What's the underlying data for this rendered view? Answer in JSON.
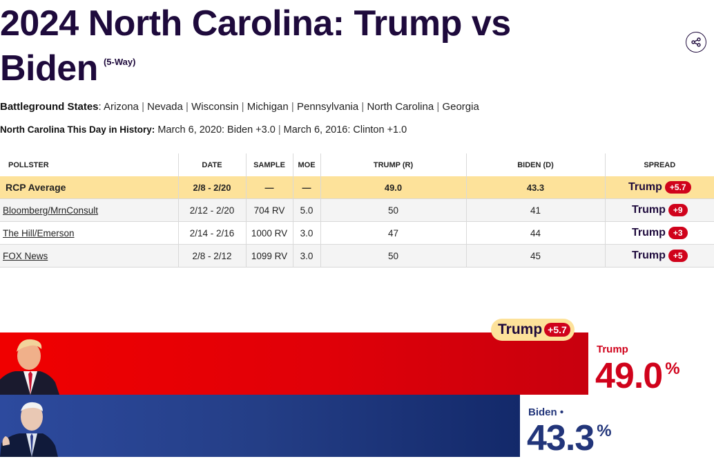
{
  "header": {
    "title": "2024 North Carolina: Trump vs Biden",
    "subtitle": "(5-Way)",
    "share_icon": "share-icon"
  },
  "battleground": {
    "label": "Battleground States",
    "states": [
      "Arizona",
      "Nevada",
      "Wisconsin",
      "Michigan",
      "Pennsylvania",
      "North Carolina",
      "Georgia"
    ]
  },
  "history": {
    "label": "North Carolina This Day in History:",
    "entries": [
      "March 6, 2020: Biden +3.0",
      "March 6, 2016: Clinton +1.0"
    ]
  },
  "table": {
    "headers": [
      "POLLSTER",
      "DATE",
      "SAMPLE",
      "MOE",
      "TRUMP (R)",
      "BIDEN (D)",
      "SPREAD"
    ],
    "average": {
      "pollster": "RCP Average",
      "date": "2/8 - 2/20",
      "sample": "—",
      "moe": "—",
      "trump": "49.0",
      "biden": "43.3",
      "spread_name": "Trump",
      "spread_value": "+5.7"
    },
    "rows": [
      {
        "pollster": "Bloomberg/MrnConsult",
        "date": "2/12 - 2/20",
        "sample": "704 RV",
        "moe": "5.0",
        "trump": "50",
        "biden": "41",
        "spread_name": "Trump",
        "spread_value": "+9"
      },
      {
        "pollster": "The Hill/Emerson",
        "date": "2/14 - 2/16",
        "sample": "1000 RV",
        "moe": "3.0",
        "trump": "47",
        "biden": "44",
        "spread_name": "Trump",
        "spread_value": "+3"
      },
      {
        "pollster": "FOX News",
        "date": "2/8 - 2/12",
        "sample": "1099 RV",
        "moe": "3.0",
        "trump": "50",
        "biden": "45",
        "spread_name": "Trump",
        "spread_value": "+5"
      }
    ]
  },
  "bars": {
    "leader": {
      "name": "Trump",
      "margin": "+5.7"
    },
    "trump": {
      "name": "Trump",
      "value": "49.0",
      "unit": "%",
      "color": "#e00008",
      "share": 0.49
    },
    "biden": {
      "name": "Biden",
      "marker": "•",
      "value": "43.3",
      "unit": "%",
      "color": "#243e86",
      "share": 0.433
    }
  },
  "colors": {
    "brand": "#1e0a3c",
    "republican": "#d0021b",
    "democrat": "#22357a",
    "highlight": "#fde29a"
  }
}
